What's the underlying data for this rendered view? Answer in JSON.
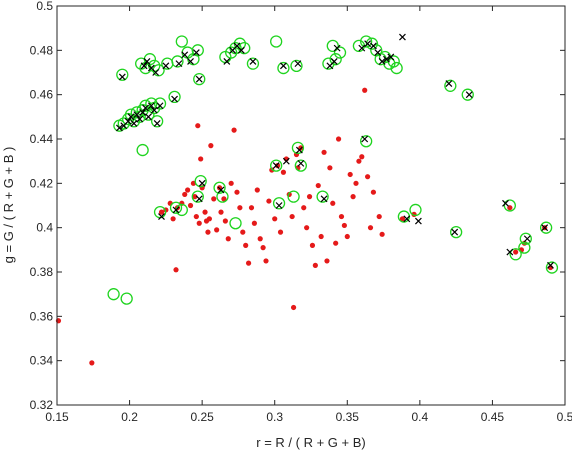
{
  "chart_data": {
    "type": "scatter",
    "xlabel": "r = R / ( R + G + B)",
    "ylabel": "g = G / ( R + G + B )",
    "xlim": [
      0.15,
      0.5
    ],
    "ylim": [
      0.32,
      0.5
    ],
    "xticks": [
      "0.15",
      "0.2",
      "0.25",
      "0.3",
      "0.35",
      "0.4",
      "0.45",
      "0.5"
    ],
    "yticks": [
      "0.32",
      "0.34",
      "0.36",
      "0.38",
      "0.4",
      "0.42",
      "0.44",
      "0.46",
      "0.48",
      "0.5"
    ],
    "grid": false,
    "box": true,
    "colors": {
      "dots": "#e51a1a",
      "circles": "#1fd41f",
      "crosses": "#000000",
      "axes": "#262626"
    },
    "series": [
      {
        "marker": "filled-dot",
        "color": "#e51a1a",
        "points": [
          [
            0.151,
            0.358
          ],
          [
            0.174,
            0.339
          ],
          [
            0.222,
            0.407
          ],
          [
            0.225,
            0.408
          ],
          [
            0.228,
            0.411
          ],
          [
            0.23,
            0.404
          ],
          [
            0.232,
            0.381
          ],
          [
            0.233,
            0.409
          ],
          [
            0.236,
            0.411
          ],
          [
            0.238,
            0.415
          ],
          [
            0.24,
            0.417
          ],
          [
            0.242,
            0.41
          ],
          [
            0.244,
            0.42
          ],
          [
            0.245,
            0.414
          ],
          [
            0.246,
            0.405
          ],
          [
            0.247,
            0.446
          ],
          [
            0.248,
            0.402
          ],
          [
            0.249,
            0.431
          ],
          [
            0.25,
            0.418
          ],
          [
            0.252,
            0.407
          ],
          [
            0.253,
            0.403
          ],
          [
            0.254,
            0.398
          ],
          [
            0.255,
            0.404
          ],
          [
            0.256,
            0.437
          ],
          [
            0.258,
            0.413
          ],
          [
            0.26,
            0.399
          ],
          [
            0.262,
            0.418
          ],
          [
            0.263,
            0.407
          ],
          [
            0.265,
            0.413
          ],
          [
            0.266,
            0.403
          ],
          [
            0.268,
            0.395
          ],
          [
            0.27,
            0.42
          ],
          [
            0.272,
            0.444
          ],
          [
            0.274,
            0.416
          ],
          [
            0.276,
            0.409
          ],
          [
            0.278,
            0.398
          ],
          [
            0.28,
            0.392
          ],
          [
            0.282,
            0.384
          ],
          [
            0.284,
            0.409
          ],
          [
            0.286,
            0.402
          ],
          [
            0.288,
            0.417
          ],
          [
            0.29,
            0.395
          ],
          [
            0.292,
            0.391
          ],
          [
            0.294,
            0.385
          ],
          [
            0.296,
            0.412
          ],
          [
            0.298,
            0.426
          ],
          [
            0.3,
            0.404
          ],
          [
            0.302,
            0.428
          ],
          [
            0.304,
            0.398
          ],
          [
            0.306,
            0.425
          ],
          [
            0.308,
            0.431
          ],
          [
            0.31,
            0.415
          ],
          [
            0.312,
            0.405
          ],
          [
            0.313,
            0.364
          ],
          [
            0.315,
            0.433
          ],
          [
            0.316,
            0.427
          ],
          [
            0.318,
            0.436
          ],
          [
            0.32,
            0.409
          ],
          [
            0.322,
            0.4
          ],
          [
            0.324,
            0.414
          ],
          [
            0.326,
            0.392
          ],
          [
            0.328,
            0.383
          ],
          [
            0.33,
            0.419
          ],
          [
            0.332,
            0.396
          ],
          [
            0.334,
            0.434
          ],
          [
            0.336,
            0.385
          ],
          [
            0.338,
            0.427
          ],
          [
            0.34,
            0.411
          ],
          [
            0.342,
            0.393
          ],
          [
            0.344,
            0.44
          ],
          [
            0.346,
            0.405
          ],
          [
            0.348,
            0.401
          ],
          [
            0.35,
            0.396
          ],
          [
            0.352,
            0.424
          ],
          [
            0.354,
            0.414
          ],
          [
            0.356,
            0.42
          ],
          [
            0.358,
            0.43
          ],
          [
            0.36,
            0.432
          ],
          [
            0.362,
            0.462
          ],
          [
            0.364,
            0.423
          ],
          [
            0.366,
            0.4
          ],
          [
            0.368,
            0.416
          ],
          [
            0.372,
            0.405
          ],
          [
            0.374,
            0.397
          ],
          [
            0.388,
            0.404
          ],
          [
            0.396,
            0.406
          ],
          [
            0.462,
            0.409
          ],
          [
            0.466,
            0.389
          ],
          [
            0.47,
            0.39
          ],
          [
            0.472,
            0.393
          ],
          [
            0.486,
            0.4
          ],
          [
            0.49,
            0.382
          ]
        ]
      },
      {
        "marker": "open-circle",
        "color": "#1fd41f",
        "points": [
          [
            0.189,
            0.37
          ],
          [
            0.198,
            0.368
          ],
          [
            0.209,
            0.435
          ],
          [
            0.193,
            0.446
          ],
          [
            0.196,
            0.447
          ],
          [
            0.199,
            0.449
          ],
          [
            0.201,
            0.451
          ],
          [
            0.203,
            0.448
          ],
          [
            0.205,
            0.452
          ],
          [
            0.207,
            0.45
          ],
          [
            0.209,
            0.453
          ],
          [
            0.211,
            0.455
          ],
          [
            0.213,
            0.451
          ],
          [
            0.215,
            0.456
          ],
          [
            0.217,
            0.454
          ],
          [
            0.219,
            0.448
          ],
          [
            0.221,
            0.456
          ],
          [
            0.231,
            0.459
          ],
          [
            0.195,
            0.469
          ],
          [
            0.208,
            0.474
          ],
          [
            0.211,
            0.472
          ],
          [
            0.214,
            0.476
          ],
          [
            0.217,
            0.473
          ],
          [
            0.22,
            0.471
          ],
          [
            0.226,
            0.474
          ],
          [
            0.233,
            0.475
          ],
          [
            0.236,
            0.484
          ],
          [
            0.24,
            0.479
          ],
          [
            0.244,
            0.476
          ],
          [
            0.247,
            0.48
          ],
          [
            0.248,
            0.467
          ],
          [
            0.266,
            0.477
          ],
          [
            0.27,
            0.479
          ],
          [
            0.273,
            0.481
          ],
          [
            0.276,
            0.483
          ],
          [
            0.279,
            0.481
          ],
          [
            0.285,
            0.474
          ],
          [
            0.301,
            0.484
          ],
          [
            0.306,
            0.472
          ],
          [
            0.315,
            0.473
          ],
          [
            0.337,
            0.474
          ],
          [
            0.34,
            0.482
          ],
          [
            0.342,
            0.476
          ],
          [
            0.345,
            0.479
          ],
          [
            0.358,
            0.482
          ],
          [
            0.363,
            0.484
          ],
          [
            0.367,
            0.483
          ],
          [
            0.37,
            0.48
          ],
          [
            0.373,
            0.476
          ],
          [
            0.376,
            0.477
          ],
          [
            0.379,
            0.474
          ],
          [
            0.382,
            0.475
          ],
          [
            0.384,
            0.472
          ],
          [
            0.421,
            0.464
          ],
          [
            0.433,
            0.46
          ],
          [
            0.221,
            0.407
          ],
          [
            0.232,
            0.409
          ],
          [
            0.236,
            0.408
          ],
          [
            0.247,
            0.414
          ],
          [
            0.249,
            0.421
          ],
          [
            0.262,
            0.418
          ],
          [
            0.264,
            0.414
          ],
          [
            0.273,
            0.402
          ],
          [
            0.301,
            0.428
          ],
          [
            0.303,
            0.411
          ],
          [
            0.313,
            0.414
          ],
          [
            0.316,
            0.436
          ],
          [
            0.318,
            0.428
          ],
          [
            0.333,
            0.414
          ],
          [
            0.363,
            0.439
          ],
          [
            0.389,
            0.405
          ],
          [
            0.397,
            0.408
          ],
          [
            0.425,
            0.398
          ],
          [
            0.462,
            0.41
          ],
          [
            0.466,
            0.388
          ],
          [
            0.472,
            0.391
          ],
          [
            0.473,
            0.395
          ],
          [
            0.487,
            0.4
          ],
          [
            0.491,
            0.382
          ]
        ]
      },
      {
        "marker": "cross",
        "color": "#000000",
        "points": [
          [
            0.193,
            0.445
          ],
          [
            0.196,
            0.446
          ],
          [
            0.199,
            0.448
          ],
          [
            0.201,
            0.45
          ],
          [
            0.203,
            0.447
          ],
          [
            0.205,
            0.451
          ],
          [
            0.207,
            0.449
          ],
          [
            0.209,
            0.452
          ],
          [
            0.211,
            0.454
          ],
          [
            0.213,
            0.45
          ],
          [
            0.215,
            0.455
          ],
          [
            0.217,
            0.453
          ],
          [
            0.219,
            0.447
          ],
          [
            0.221,
            0.455
          ],
          [
            0.231,
            0.458
          ],
          [
            0.195,
            0.468
          ],
          [
            0.21,
            0.473
          ],
          [
            0.212,
            0.475
          ],
          [
            0.215,
            0.472
          ],
          [
            0.218,
            0.47
          ],
          [
            0.225,
            0.473
          ],
          [
            0.234,
            0.474
          ],
          [
            0.238,
            0.478
          ],
          [
            0.242,
            0.475
          ],
          [
            0.246,
            0.479
          ],
          [
            0.248,
            0.467
          ],
          [
            0.267,
            0.475
          ],
          [
            0.271,
            0.48
          ],
          [
            0.274,
            0.482
          ],
          [
            0.277,
            0.48
          ],
          [
            0.285,
            0.475
          ],
          [
            0.306,
            0.473
          ],
          [
            0.316,
            0.474
          ],
          [
            0.338,
            0.473
          ],
          [
            0.343,
            0.481
          ],
          [
            0.341,
            0.475
          ],
          [
            0.36,
            0.481
          ],
          [
            0.364,
            0.483
          ],
          [
            0.368,
            0.482
          ],
          [
            0.371,
            0.479
          ],
          [
            0.374,
            0.475
          ],
          [
            0.377,
            0.476
          ],
          [
            0.38,
            0.477
          ],
          [
            0.388,
            0.486
          ],
          [
            0.42,
            0.465
          ],
          [
            0.434,
            0.46
          ],
          [
            0.222,
            0.405
          ],
          [
            0.232,
            0.408
          ],
          [
            0.248,
            0.413
          ],
          [
            0.25,
            0.42
          ],
          [
            0.263,
            0.417
          ],
          [
            0.301,
            0.428
          ],
          [
            0.303,
            0.41
          ],
          [
            0.308,
            0.43
          ],
          [
            0.317,
            0.435
          ],
          [
            0.318,
            0.429
          ],
          [
            0.334,
            0.413
          ],
          [
            0.362,
            0.44
          ],
          [
            0.391,
            0.404
          ],
          [
            0.399,
            0.403
          ],
          [
            0.424,
            0.398
          ],
          [
            0.459,
            0.411
          ],
          [
            0.462,
            0.389
          ],
          [
            0.474,
            0.395
          ],
          [
            0.486,
            0.4
          ],
          [
            0.49,
            0.383
          ]
        ]
      }
    ]
  }
}
